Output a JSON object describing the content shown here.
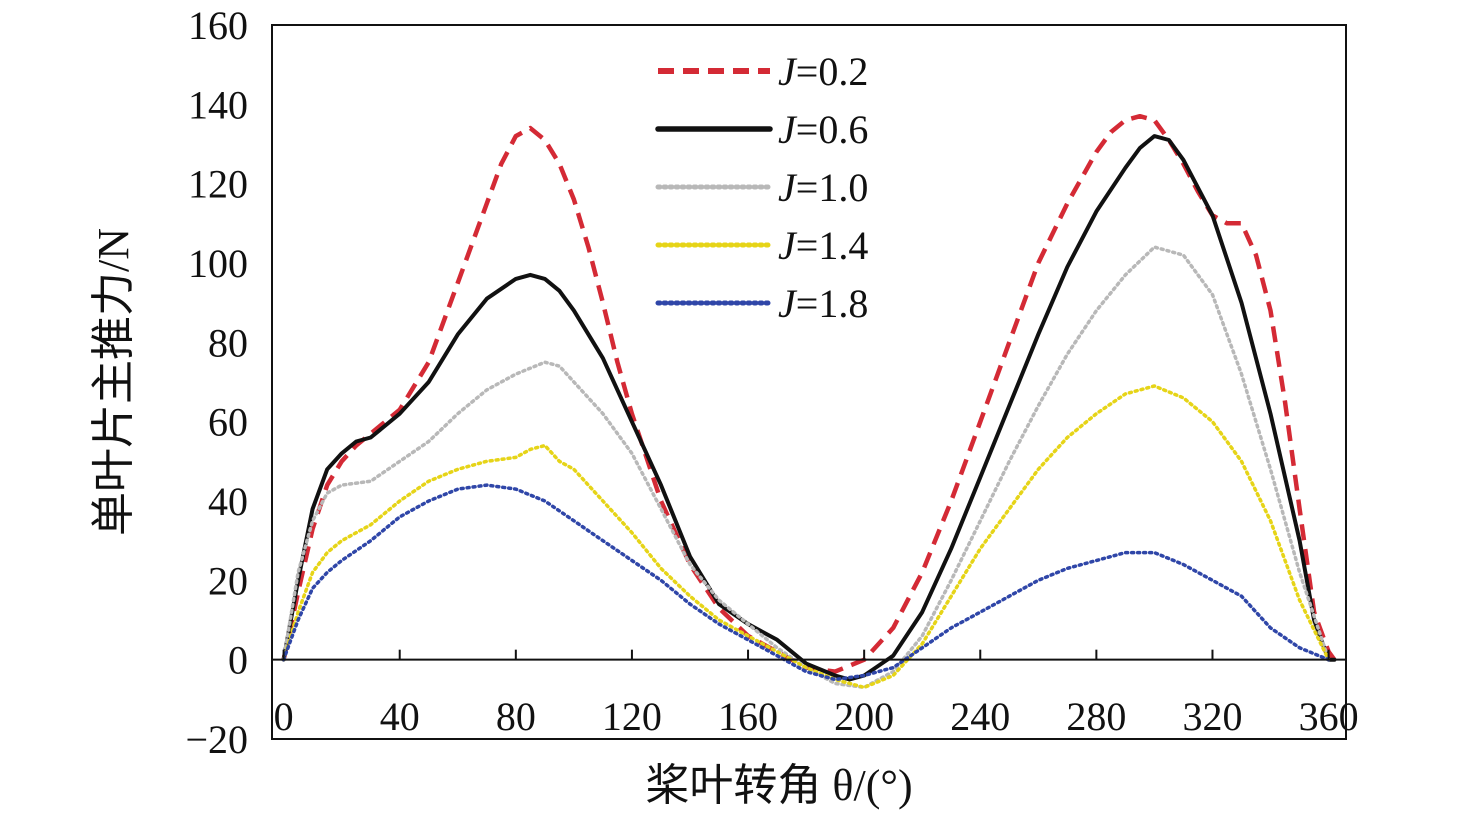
{
  "chart_data": {
    "type": "line",
    "xlabel": "桨叶转角 θ/(°)",
    "ylabel": "单叶片主推力/N",
    "xlim": [
      -4,
      366
    ],
    "ylim": [
      -20,
      160
    ],
    "xticks": [
      0,
      40,
      80,
      120,
      160,
      200,
      240,
      280,
      320,
      360
    ],
    "yticks": [
      -20,
      0,
      20,
      40,
      60,
      80,
      100,
      120,
      140,
      160
    ],
    "xtick_labels": [
      "0",
      "40",
      "80",
      "120",
      "160",
      "200",
      "240",
      "280",
      "320",
      "360"
    ],
    "ytick_labels": [
      "−20",
      "0",
      "20",
      "40",
      "60",
      "80",
      "100",
      "120",
      "140",
      "160"
    ],
    "legend_position": "top-center",
    "grid": false,
    "series": [
      {
        "name": "J=0.2",
        "legend_prefix": "J",
        "legend_suffix": "=0.2",
        "color": "#d42a35",
        "style": "dashed",
        "x": [
          0,
          5,
          10,
          15,
          20,
          25,
          30,
          40,
          50,
          60,
          70,
          75,
          80,
          85,
          90,
          95,
          100,
          105,
          110,
          115,
          120,
          130,
          140,
          150,
          160,
          170,
          180,
          190,
          200,
          210,
          220,
          230,
          240,
          250,
          260,
          270,
          280,
          285,
          290,
          295,
          300,
          305,
          310,
          315,
          320,
          325,
          330,
          335,
          340,
          345,
          350,
          355,
          360,
          362
        ],
        "y": [
          0,
          17,
          33,
          44,
          50,
          54,
          57,
          63,
          75,
          95,
          115,
          125,
          132,
          134,
          131,
          125,
          116,
          104,
          90,
          75,
          62,
          40,
          24,
          13,
          6,
          2,
          -2,
          -3,
          0,
          8,
          22,
          40,
          60,
          80,
          100,
          115,
          128,
          133,
          136,
          137,
          136,
          131,
          125,
          118,
          112,
          110,
          110,
          102,
          88,
          65,
          38,
          12,
          2,
          0
        ]
      },
      {
        "name": "J=0.6",
        "legend_prefix": "J",
        "legend_suffix": "=0.6",
        "color": "#111111",
        "style": "solid",
        "x": [
          0,
          5,
          10,
          15,
          20,
          25,
          30,
          40,
          50,
          60,
          70,
          80,
          85,
          90,
          95,
          100,
          110,
          120,
          130,
          140,
          150,
          160,
          170,
          180,
          190,
          195,
          200,
          210,
          220,
          230,
          240,
          250,
          260,
          270,
          280,
          290,
          295,
          300,
          305,
          310,
          320,
          330,
          340,
          350,
          355,
          360,
          362
        ],
        "y": [
          0,
          20,
          38,
          48,
          52,
          55,
          56,
          62,
          70,
          82,
          91,
          96,
          97,
          96,
          93,
          88,
          76,
          60,
          44,
          26,
          14,
          9,
          5,
          -1,
          -4,
          -5,
          -4,
          1,
          12,
          28,
          46,
          64,
          82,
          99,
          113,
          124,
          129,
          132,
          131,
          126,
          112,
          90,
          62,
          30,
          10,
          0,
          0
        ]
      },
      {
        "name": "J=1.0",
        "legend_prefix": "J",
        "legend_suffix": "=1.0",
        "color": "#b8b8b8",
        "style": "dotted",
        "x": [
          0,
          5,
          10,
          15,
          20,
          30,
          40,
          50,
          60,
          70,
          80,
          90,
          95,
          100,
          110,
          120,
          130,
          140,
          150,
          160,
          170,
          180,
          190,
          200,
          210,
          220,
          230,
          240,
          250,
          260,
          270,
          280,
          290,
          300,
          310,
          320,
          330,
          340,
          350,
          360
        ],
        "y": [
          0,
          22,
          35,
          42,
          44,
          45,
          50,
          55,
          62,
          68,
          72,
          75,
          74,
          70,
          62,
          52,
          38,
          24,
          15,
          9,
          3,
          -2,
          -6,
          -7,
          -3,
          6,
          20,
          35,
          50,
          64,
          77,
          88,
          97,
          104,
          102,
          92,
          72,
          48,
          22,
          0
        ]
      },
      {
        "name": "J=1.4",
        "legend_prefix": "J",
        "legend_suffix": "=1.4",
        "color": "#e6d417",
        "style": "dotted",
        "x": [
          0,
          5,
          10,
          15,
          20,
          25,
          30,
          40,
          50,
          60,
          70,
          80,
          85,
          90,
          95,
          100,
          110,
          120,
          130,
          140,
          150,
          160,
          170,
          180,
          190,
          200,
          210,
          220,
          230,
          240,
          250,
          260,
          270,
          280,
          290,
          300,
          310,
          320,
          330,
          340,
          350,
          360
        ],
        "y": [
          0,
          12,
          22,
          27,
          30,
          32,
          34,
          40,
          45,
          48,
          50,
          51,
          53,
          54,
          50,
          48,
          40,
          32,
          23,
          16,
          10,
          6,
          2,
          -2,
          -5,
          -7,
          -4,
          4,
          16,
          28,
          38,
          48,
          56,
          62,
          67,
          69,
          66,
          60,
          50,
          35,
          15,
          0
        ]
      },
      {
        "name": "J=1.8",
        "legend_prefix": "J",
        "legend_suffix": "=1.8",
        "color": "#2f46a8",
        "style": "dotted",
        "x": [
          0,
          5,
          10,
          15,
          20,
          30,
          40,
          50,
          60,
          70,
          80,
          90,
          100,
          110,
          120,
          130,
          140,
          150,
          160,
          170,
          180,
          190,
          200,
          210,
          220,
          230,
          240,
          250,
          260,
          270,
          280,
          290,
          300,
          310,
          320,
          330,
          340,
          350,
          360
        ],
        "y": [
          0,
          10,
          18,
          22,
          25,
          30,
          36,
          40,
          43,
          44,
          43,
          40,
          35,
          30,
          25,
          20,
          14,
          9,
          5,
          1,
          -3,
          -5,
          -4,
          -2,
          3,
          8,
          12,
          16,
          20,
          23,
          25,
          27,
          27,
          24,
          20,
          16,
          8,
          3,
          0
        ]
      }
    ]
  }
}
